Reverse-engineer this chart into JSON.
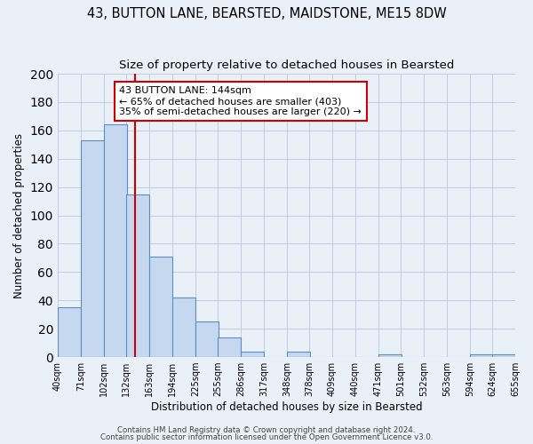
{
  "title1": "43, BUTTON LANE, BEARSTED, MAIDSTONE, ME15 8DW",
  "title2": "Size of property relative to detached houses in Bearsted",
  "xlabel": "Distribution of detached houses by size in Bearsted",
  "ylabel": "Number of detached properties",
  "bar_left_edges": [
    40,
    71,
    102,
    132,
    163,
    194,
    225,
    255,
    286,
    317,
    348,
    378,
    409,
    440,
    471,
    501,
    532,
    563,
    594,
    624
  ],
  "bar_widths": [
    31,
    31,
    31,
    31,
    31,
    31,
    31,
    31,
    31,
    31,
    31,
    31,
    31,
    31,
    31,
    31,
    31,
    31,
    31,
    31
  ],
  "bar_heights": [
    35,
    153,
    164,
    115,
    71,
    42,
    25,
    14,
    4,
    0,
    4,
    0,
    0,
    0,
    2,
    0,
    0,
    0,
    2,
    2
  ],
  "tick_labels": [
    "40sqm",
    "71sqm",
    "102sqm",
    "132sqm",
    "163sqm",
    "194sqm",
    "225sqm",
    "255sqm",
    "286sqm",
    "317sqm",
    "348sqm",
    "378sqm",
    "409sqm",
    "440sqm",
    "471sqm",
    "501sqm",
    "532sqm",
    "563sqm",
    "594sqm",
    "624sqm",
    "655sqm"
  ],
  "bar_color": "#c5d8f0",
  "bar_edge_color": "#5b8dc8",
  "bar_linewidth": 0.8,
  "vline_x": 144,
  "vline_color": "#cc0000",
  "ylim": [
    0,
    200
  ],
  "yticks": [
    0,
    20,
    40,
    60,
    80,
    100,
    120,
    140,
    160,
    180,
    200
  ],
  "annotation_title": "43 BUTTON LANE: 144sqm",
  "annotation_line1": "← 65% of detached houses are smaller (403)",
  "annotation_line2": "35% of semi-detached houses are larger (220) →",
  "footer1": "Contains HM Land Registry data © Crown copyright and database right 2024.",
  "footer2": "Contains public sector information licensed under the Open Government Licence v3.0.",
  "background_color": "#eaf0f8",
  "plot_background_color": "#eaf0f8",
  "grid_color": "#b8c8dc",
  "title1_fontsize": 10.5,
  "title2_fontsize": 9.5
}
